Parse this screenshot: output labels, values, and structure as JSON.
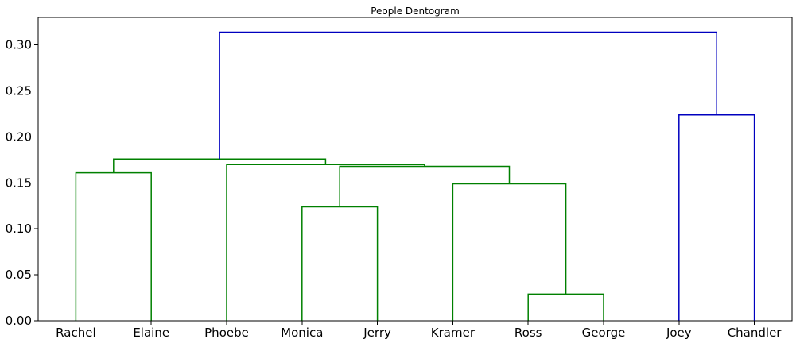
{
  "chart_data": {
    "type": "dendrogram",
    "title": "People Dentogram",
    "xlabel": "",
    "ylabel": "",
    "ylim": [
      0,
      0.33
    ],
    "yticks": [
      0.0,
      0.05,
      0.1,
      0.15,
      0.2,
      0.25,
      0.3
    ],
    "ytick_labels": [
      "0.00",
      "0.05",
      "0.10",
      "0.15",
      "0.20",
      "0.25",
      "0.30"
    ],
    "leaves": [
      "Rachel",
      "Elaine",
      "Phoebe",
      "Monica",
      "Jerry",
      "Kramer",
      "Ross",
      "George",
      "Joey",
      "Chandler"
    ],
    "colors": {
      "cluster_a": "#008000",
      "cluster_b": "#0000bf"
    },
    "merges": [
      {
        "id": "ross_george",
        "left": "Ross",
        "right": "George",
        "height": 0.029,
        "color": "cluster_a"
      },
      {
        "id": "monica_jerry",
        "left": "Monica",
        "right": "Jerry",
        "height": 0.124,
        "color": "cluster_a"
      },
      {
        "id": "kramer_rg",
        "left": "Kramer",
        "right": "ross_george",
        "height": 0.149,
        "color": "cluster_a"
      },
      {
        "id": "rachel_elaine",
        "left": "Rachel",
        "right": "Elaine",
        "height": 0.161,
        "color": "cluster_a"
      },
      {
        "id": "mj_krg",
        "left": "monica_jerry",
        "right": "kramer_rg",
        "height": 0.168,
        "color": "cluster_a"
      },
      {
        "id": "phoebe_rest",
        "left": "Phoebe",
        "right": "mj_krg",
        "height": 0.17,
        "color": "cluster_a"
      },
      {
        "id": "re_rest",
        "left": "rachel_elaine",
        "right": "phoebe_rest",
        "height": 0.176,
        "color": "cluster_a"
      },
      {
        "id": "joey_chandler",
        "left": "Joey",
        "right": "Chandler",
        "height": 0.224,
        "color": "cluster_b"
      },
      {
        "id": "root",
        "left": "re_rest",
        "right": "joey_chandler",
        "height": 0.314,
        "color": "cluster_b"
      }
    ]
  }
}
